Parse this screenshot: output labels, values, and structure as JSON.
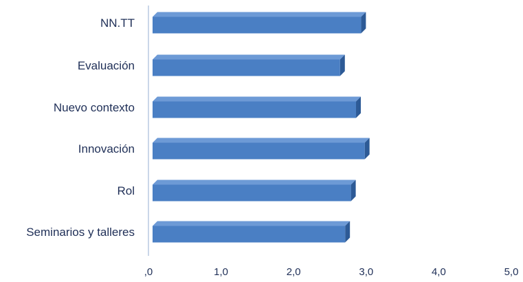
{
  "chart_data": {
    "type": "bar",
    "orientation": "horizontal",
    "style": "3d",
    "categories": [
      "NN.TT",
      "Evaluación",
      "Nuevo contexto",
      "Innovación",
      "Rol",
      "Seminarios y talleres"
    ],
    "values": [
      2.93,
      2.64,
      2.86,
      2.98,
      2.79,
      2.71
    ],
    "xlim": [
      0,
      5
    ],
    "x_ticks": [
      0,
      1,
      2,
      3,
      4,
      5
    ],
    "x_tick_labels": [
      ",0",
      "1,0",
      "2,0",
      "3,0",
      "4,0",
      "5,0"
    ],
    "title": "",
    "xlabel": "",
    "ylabel": "",
    "grid": false,
    "legend": "none",
    "colors": {
      "bar_front": "#4a7fc4",
      "bar_top": "#6d9ad6",
      "bar_side": "#2d5a96",
      "axis": "#b8c8e0",
      "text": "#1f2f57"
    }
  }
}
